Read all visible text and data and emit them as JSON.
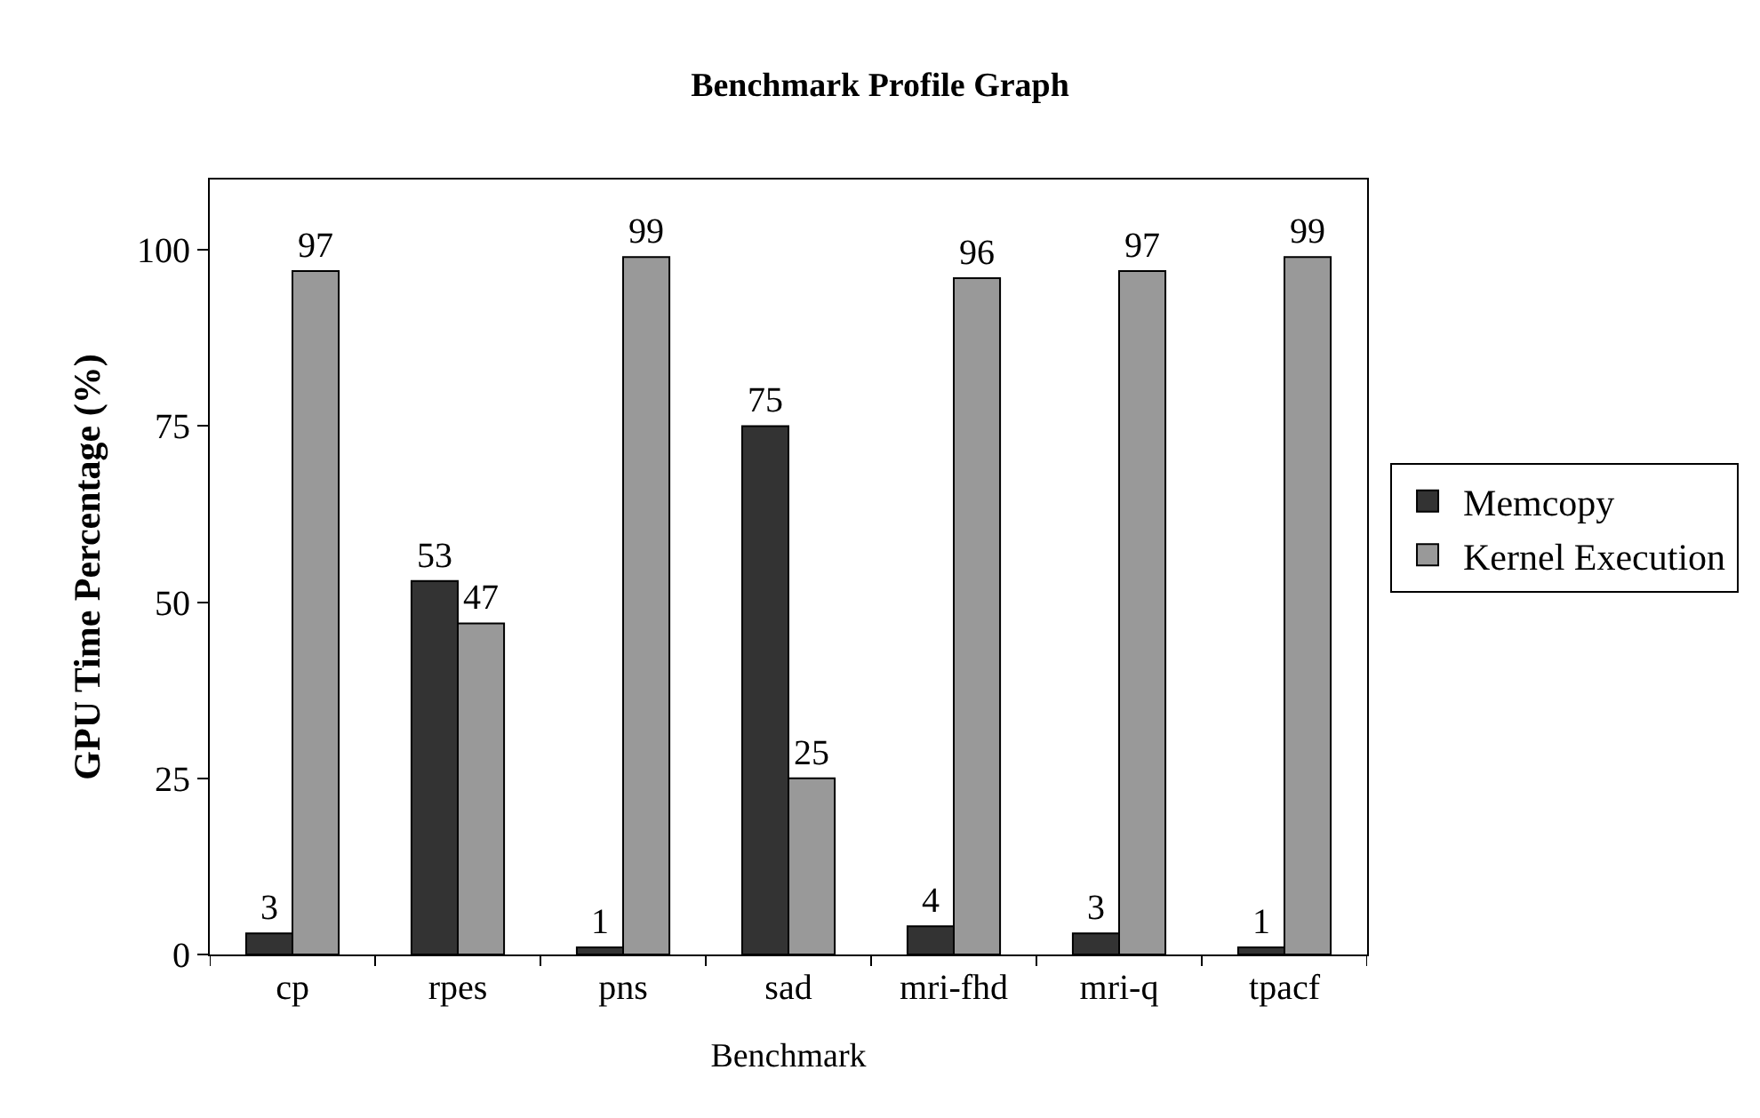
{
  "chart_data": {
    "type": "bar",
    "title": "Benchmark Profile Graph",
    "xlabel": "Benchmark",
    "ylabel": "GPU Time Percentage (%)",
    "categories": [
      "cp",
      "rpes",
      "pns",
      "sad",
      "mri-fhd",
      "mri-q",
      "tpacf"
    ],
    "series": [
      {
        "name": "Memcopy",
        "color": "#333333",
        "values": [
          3,
          53,
          1,
          75,
          4,
          3,
          1
        ]
      },
      {
        "name": "Kernel Execution",
        "color": "#999999",
        "values": [
          97,
          47,
          99,
          25,
          96,
          97,
          99
        ]
      }
    ],
    "ylim": [
      0,
      110
    ],
    "yticks": [
      0,
      25,
      50,
      75,
      100
    ],
    "grid": false,
    "legend": "right",
    "data_labels": true
  }
}
